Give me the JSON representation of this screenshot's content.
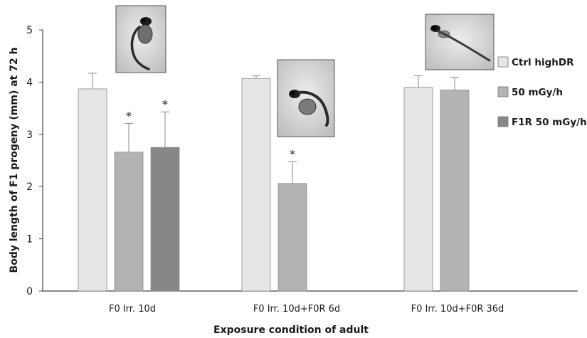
{
  "chart_data": {
    "type": "bar",
    "title": "",
    "xlabel": "Exposure condition of adult",
    "ylabel": "Body length of F1 progeny (mm) at 72 h",
    "ylim": [
      0,
      5
    ],
    "yticks": [
      0,
      1,
      2,
      3,
      4,
      5
    ],
    "grid": false,
    "legend_position": "right",
    "categories": [
      "F0 Irr. 10d",
      "F0 Irr. 10d+F0R 6d",
      "F0 Irr.  10d+F0R 36d"
    ],
    "series": [
      {
        "name": "Ctrl highDR",
        "color": "#e6e6e6",
        "values": [
          3.87,
          4.07,
          3.9
        ],
        "errors": [
          0.3,
          0.05,
          0.22
        ],
        "sig": [
          "",
          "",
          ""
        ]
      },
      {
        "name": "50 mGy/h",
        "color": "#b3b3b3",
        "values": [
          2.66,
          2.06,
          3.85
        ],
        "errors": [
          0.55,
          0.42,
          0.24
        ],
        "sig": [
          "*",
          "*",
          ""
        ]
      },
      {
        "name": "F1R 50 mGy/h",
        "color": "#878787",
        "values": [
          2.75,
          null,
          null
        ],
        "errors": [
          0.68,
          null,
          null
        ],
        "sig": [
          "*",
          "",
          ""
        ]
      }
    ],
    "images": [
      "larva-image-1",
      "larva-image-2",
      "larva-image-3"
    ]
  }
}
